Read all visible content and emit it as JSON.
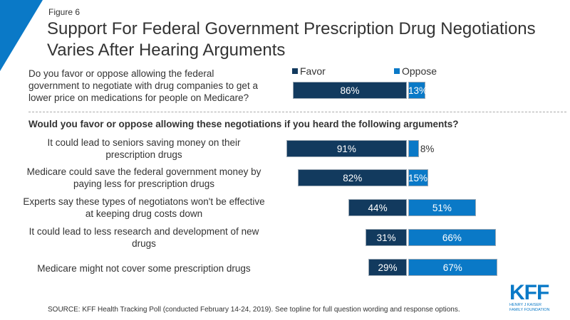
{
  "figure_label": "Figure 6",
  "title": "Support For Federal Government Prescription Drug Negotiations Varies After Hearing Arguments",
  "colors": {
    "favor": "#123a5e",
    "oppose": "#0a79c7",
    "accent": "#0a79c7"
  },
  "chart_data": {
    "type": "bar",
    "orientation": "horizontal-diverging",
    "legend": [
      "Favor",
      "Oppose"
    ],
    "legend_position": "top",
    "main_question": {
      "label": "Do you favor or oppose allowing the federal government to negotiate with drug companies to get a lower price on medications for people on Medicare?",
      "favor": 86,
      "oppose": 13
    },
    "subheading": "Would you favor or oppose allowing these negotiations if you heard the following arguments?",
    "categories": [
      "It could lead to seniors saving money on their prescription drugs",
      "Medicare could save the federal government money by paying less for prescription drugs",
      "Experts say these types of negotiatons won't be effective at keeping drug costs down",
      "It could lead to less research and development of new drugs",
      "Medicare might not cover some prescription drugs"
    ],
    "series": [
      {
        "name": "Favor",
        "values": [
          91,
          82,
          44,
          31,
          29
        ]
      },
      {
        "name": "Oppose",
        "values": [
          8,
          15,
          51,
          66,
          67
        ]
      }
    ],
    "unit": "%"
  },
  "source": "SOURCE: KFF Health Tracking Poll (conducted February 14-24, 2019). See topline for full question wording and response options.",
  "logo": {
    "mark": "KFF",
    "line1": "HENRY J KAISER",
    "line2": "FAMILY FOUNDATION"
  }
}
